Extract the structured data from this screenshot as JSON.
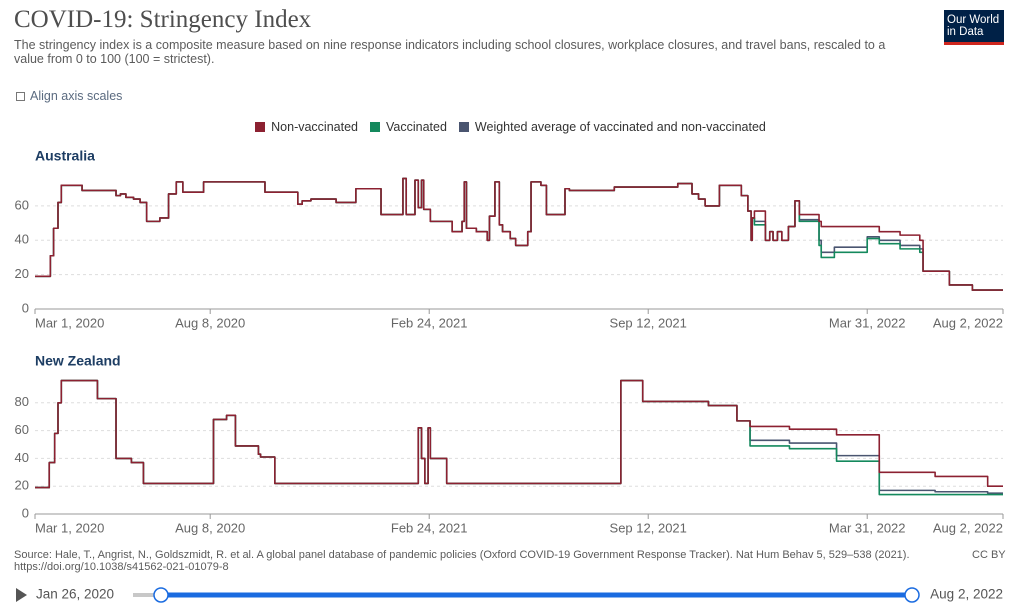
{
  "header": {
    "title": "COVID-19: Stringency Index",
    "subtitle": "The stringency index is a composite measure based on nine response indicators including school closures, workplace closures, and travel bans, rescaled to a value from 0 to 100 (100 = strictest).",
    "logo": [
      "Our World",
      "in Data"
    ]
  },
  "controls": {
    "align_axis": "Align axis scales"
  },
  "chart_data": [
    {
      "type": "line",
      "title": "Australia",
      "step": true,
      "grid": true,
      "xlim": [
        "2020-03-01",
        "2022-08-02"
      ],
      "xticks": [
        {
          "value": "2020-03-01",
          "label": "Mar 1, 2020"
        },
        {
          "value": "2020-08-08",
          "label": "Aug 8, 2020"
        },
        {
          "value": "2021-02-24",
          "label": "Feb 24, 2021"
        },
        {
          "value": "2021-09-12",
          "label": "Sep 12, 2021"
        },
        {
          "value": "2022-03-31",
          "label": "Mar 31, 2022"
        },
        {
          "value": "2022-08-02",
          "label": "Aug 2, 2022"
        }
      ],
      "ylim": [
        0,
        78
      ],
      "yticks": [
        0,
        20,
        40,
        60
      ],
      "x": [
        "2020-03-01",
        "2020-03-15",
        "2020-03-18",
        "2020-03-22",
        "2020-03-25",
        "2020-04-13",
        "2020-05-14",
        "2020-05-18",
        "2020-05-23",
        "2020-05-30",
        "2020-06-05",
        "2020-06-11",
        "2020-06-23",
        "2020-07-01",
        "2020-07-08",
        "2020-07-14",
        "2020-08-02",
        "2020-09-27",
        "2020-10-27",
        "2020-10-31",
        "2020-11-08",
        "2020-12-01",
        "2020-12-19",
        "2021-01-11",
        "2021-01-31",
        "2021-02-03",
        "2021-02-11",
        "2021-02-14",
        "2021-02-17",
        "2021-02-19",
        "2021-02-25",
        "2021-03-17",
        "2021-03-26",
        "2021-03-28",
        "2021-03-30",
        "2021-04-08",
        "2021-04-18",
        "2021-04-20",
        "2021-04-25",
        "2021-04-29",
        "2021-05-02",
        "2021-05-09",
        "2021-05-14",
        "2021-05-25",
        "2021-05-28",
        "2021-06-06",
        "2021-06-11",
        "2021-06-25",
        "2021-06-28",
        "2021-07-02",
        "2021-08-12",
        "2021-10-09",
        "2021-10-22",
        "2021-10-28",
        "2021-11-03",
        "2021-11-16",
        "2021-12-06",
        "2021-12-12",
        "2021-12-15",
        "2021-12-16",
        "2021-12-18",
        "2021-12-28",
        "2022-01-01",
        "2022-01-04",
        "2022-01-08",
        "2022-01-12",
        "2022-01-18",
        "2022-01-24",
        "2022-01-28",
        "2022-02-15",
        "2022-02-17",
        "2022-03-01",
        "2022-03-31",
        "2022-04-11",
        "2022-04-30",
        "2022-05-18",
        "2022-05-21",
        "2022-06-14",
        "2022-07-05",
        "2022-08-02"
      ],
      "series": [
        {
          "name": "Non-vaccinated",
          "color": "#8c2131",
          "values": [
            19,
            31,
            47,
            62,
            72,
            69,
            66,
            67,
            65,
            64,
            62,
            51,
            53,
            67,
            74,
            68,
            74,
            68,
            61,
            63,
            64,
            62,
            70,
            55,
            76,
            55,
            75,
            59,
            75,
            58,
            51,
            45,
            51,
            74,
            47,
            45,
            40,
            54,
            74,
            49,
            45,
            41,
            37,
            45,
            74,
            72,
            55,
            55,
            70,
            69,
            71,
            73,
            67,
            64,
            60,
            72,
            66,
            57,
            40,
            53,
            57,
            40,
            45,
            40,
            45,
            40,
            48,
            63,
            55,
            51,
            48,
            48,
            48,
            45,
            43,
            40,
            22,
            14,
            11,
            11
          ]
        },
        {
          "name": "Vaccinated",
          "color": "#14895d",
          "values": [
            19,
            31,
            47,
            62,
            72,
            69,
            66,
            67,
            65,
            64,
            62,
            51,
            53,
            67,
            74,
            68,
            74,
            68,
            61,
            63,
            64,
            62,
            70,
            55,
            76,
            55,
            75,
            59,
            75,
            58,
            51,
            45,
            51,
            74,
            47,
            45,
            40,
            54,
            74,
            49,
            45,
            41,
            37,
            45,
            74,
            72,
            55,
            55,
            70,
            69,
            71,
            73,
            67,
            64,
            60,
            72,
            66,
            57,
            40,
            53,
            49,
            40,
            45,
            40,
            45,
            40,
            48,
            63,
            51,
            37,
            30,
            33,
            41,
            38,
            35,
            33,
            22,
            14,
            11,
            11
          ]
        },
        {
          "name": "Weighted average of vaccinated and non-vaccinated",
          "color": "#4a5570",
          "values": [
            19,
            31,
            47,
            62,
            72,
            69,
            66,
            67,
            65,
            64,
            62,
            51,
            53,
            67,
            74,
            68,
            74,
            68,
            61,
            63,
            64,
            62,
            70,
            55,
            76,
            55,
            75,
            59,
            75,
            58,
            51,
            45,
            51,
            74,
            47,
            45,
            40,
            54,
            74,
            49,
            45,
            41,
            37,
            45,
            74,
            72,
            55,
            55,
            70,
            69,
            71,
            73,
            67,
            64,
            60,
            72,
            66,
            57,
            40,
            53,
            51,
            40,
            45,
            40,
            45,
            40,
            48,
            63,
            52,
            40,
            33,
            36,
            42,
            40,
            37,
            35,
            22,
            14,
            11,
            11
          ]
        }
      ]
    },
    {
      "type": "line",
      "title": "New Zealand",
      "step": true,
      "grid": true,
      "xlim": [
        "2020-03-01",
        "2022-08-02"
      ],
      "xticks": [
        {
          "value": "2020-03-01",
          "label": "Mar 1, 2020"
        },
        {
          "value": "2020-08-08",
          "label": "Aug 8, 2020"
        },
        {
          "value": "2021-02-24",
          "label": "Feb 24, 2021"
        },
        {
          "value": "2021-09-12",
          "label": "Sep 12, 2021"
        },
        {
          "value": "2022-03-31",
          "label": "Mar 31, 2022"
        },
        {
          "value": "2022-08-02",
          "label": "Aug 2, 2022"
        }
      ],
      "ylim": [
        0,
        100
      ],
      "yticks": [
        0,
        20,
        40,
        60,
        80
      ],
      "x": [
        "2020-03-01",
        "2020-03-14",
        "2020-03-19",
        "2020-03-22",
        "2020-03-25",
        "2020-04-27",
        "2020-05-14",
        "2020-05-28",
        "2020-06-08",
        "2020-08-11",
        "2020-08-23",
        "2020-08-31",
        "2020-09-21",
        "2020-09-23",
        "2020-10-06",
        "2021-02-14",
        "2021-02-17",
        "2021-02-20",
        "2021-02-23",
        "2021-02-25",
        "2021-03-12",
        "2021-08-18",
        "2021-09-07",
        "2021-11-06",
        "2021-12-02",
        "2021-12-14",
        "2022-01-19",
        "2022-03-03",
        "2022-04-11",
        "2022-06-01",
        "2022-07-19",
        "2022-08-02"
      ],
      "series": [
        {
          "color": "#8c2131",
          "values": [
            19,
            37,
            58,
            80,
            96,
            83,
            40,
            37,
            22,
            68,
            71,
            49,
            43,
            41,
            22,
            62,
            40,
            22,
            62,
            40,
            22,
            96,
            81,
            78,
            67,
            63,
            61,
            57,
            30,
            27,
            20,
            20
          ]
        },
        {
          "color": "#14895d",
          "values": [
            19,
            37,
            58,
            80,
            96,
            83,
            40,
            37,
            22,
            68,
            71,
            49,
            43,
            41,
            22,
            62,
            40,
            22,
            62,
            40,
            22,
            96,
            81,
            78,
            67,
            49,
            47,
            38,
            14,
            14,
            14,
            14
          ]
        },
        {
          "color": "#4a5570",
          "values": [
            19,
            37,
            58,
            80,
            96,
            83,
            40,
            37,
            22,
            68,
            71,
            49,
            43,
            41,
            22,
            62,
            40,
            22,
            62,
            40,
            22,
            96,
            81,
            78,
            67,
            53,
            51,
            42,
            17,
            16,
            15,
            15
          ]
        }
      ]
    }
  ],
  "footer": {
    "source": [
      "Source: Hale, T., Angrist, N., Goldszmidt, R. et al. A global panel database of pandemic policies (Oxford COVID-19 Government Response Tracker). Nat Hum Behav 5, 529–538 (2021).",
      "https://doi.org/10.1038/s41562-021-01079-8"
    ],
    "license": "CC BY"
  },
  "timeline": {
    "start": "Jan 26, 2020",
    "end": "Aug 2, 2022"
  }
}
